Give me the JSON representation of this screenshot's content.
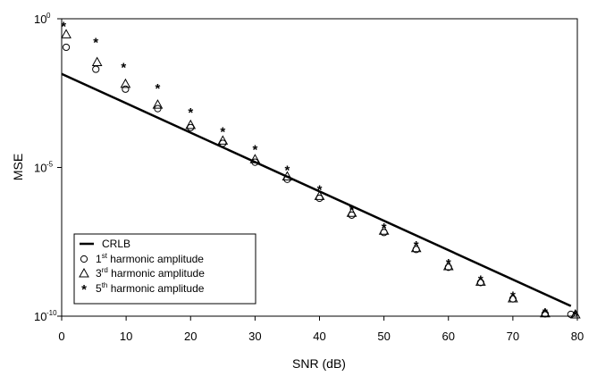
{
  "chart_data": {
    "type": "scatter",
    "title": "",
    "xlabel": "SNR (dB)",
    "ylabel": "MSE",
    "xlim": [
      0,
      80
    ],
    "ylim_log10": [
      -10,
      0
    ],
    "yscale": "log",
    "grid": false,
    "legend_position": "bottom-left",
    "x_ticks": [
      0,
      10,
      20,
      30,
      40,
      50,
      60,
      70,
      80
    ],
    "y_ticks": [
      {
        "base": "10",
        "exp": "0",
        "value": 1
      },
      {
        "base": "10",
        "exp": "-5",
        "value": 1e-05
      },
      {
        "base": "10",
        "exp": "-10",
        "value": 1e-10
      }
    ],
    "series": [
      {
        "name": "CRLB",
        "kind": "line",
        "color": "#000000",
        "x": [
          0,
          79
        ],
        "y": [
          0.014,
          2.2e-10
        ]
      },
      {
        "name_parts": [
          "1",
          "st",
          " harmonic amplitude"
        ],
        "kind": "marker",
        "marker": "circle",
        "x": [
          0.7,
          5.3,
          9.9,
          14.9,
          20.0,
          25.0,
          30.0,
          35.0,
          40.0,
          45.0,
          50.0,
          55.0,
          60.0,
          65.0,
          70.0,
          75.0,
          79.0
        ],
        "y": [
          0.11,
          0.02,
          0.0043,
          0.00095,
          0.00022,
          6.5e-05,
          1.5e-05,
          4e-06,
          9.2e-07,
          2.5e-07,
          6.5e-08,
          1.75e-08,
          4.4e-09,
          1.35e-09,
          3.8e-10,
          1.2e-10,
          2.5e-11
        ]
      },
      {
        "name_parts": [
          "3",
          "rd",
          " harmonic amplitude"
        ],
        "kind": "marker",
        "marker": "triangle",
        "x": [
          0.7,
          5.5,
          9.9,
          14.9,
          20.0,
          25.0,
          30.0,
          35.0,
          40.0,
          45.0,
          50.0,
          55.0,
          60.0,
          65.0,
          70.0,
          75.0,
          79.7
        ],
        "y": [
          0.3,
          0.035,
          0.0065,
          0.0013,
          0.00027,
          8e-05,
          1.9e-05,
          5e-06,
          1.1e-06,
          3e-07,
          7.5e-08,
          1.95e-08,
          4.8e-09,
          1.45e-09,
          4e-10,
          1.25e-10,
          3e-11
        ]
      },
      {
        "name_parts": [
          "5",
          "th",
          " harmonic amplitude"
        ],
        "kind": "marker",
        "marker": "star",
        "x": [
          0.3,
          5.3,
          9.6,
          14.9,
          20.0,
          25.0,
          30.0,
          35.0,
          40.0,
          45.0,
          50.0,
          55.0,
          60.0,
          65.0,
          70.0,
          75.0,
          79.7
        ],
        "y": [
          0.6,
          0.17,
          0.025,
          0.0048,
          0.00075,
          0.00017,
          4.2e-05,
          8.8e-06,
          1.9e-06,
          4.2e-07,
          9.9e-08,
          2.5e-08,
          6.3e-09,
          1.75e-09,
          5e-10,
          1.4e-10,
          3.4e-11
        ]
      }
    ]
  }
}
